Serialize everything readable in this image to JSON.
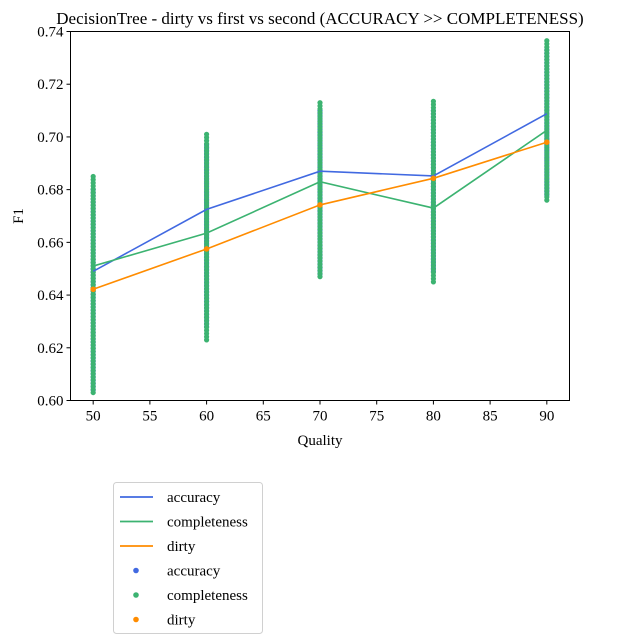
{
  "chart_data": {
    "type": "line",
    "title": "DecisionTree - dirty vs first vs second (ACCURACY >> COMPLETENESS)",
    "xlabel": "Quality",
    "ylabel": "F1",
    "xlim": [
      48,
      92
    ],
    "ylim": [
      0.6,
      0.74
    ],
    "xticks": [
      50,
      55,
      60,
      65,
      70,
      75,
      80,
      85,
      90
    ],
    "yticks": [
      0.6,
      0.62,
      0.64,
      0.66,
      0.68,
      0.7,
      0.72,
      0.74
    ],
    "ytick_labels": [
      "0.60",
      "0.62",
      "0.64",
      "0.66",
      "0.68",
      "0.70",
      "0.72",
      "0.74"
    ],
    "x": [
      50,
      60,
      70,
      80,
      90
    ],
    "series": [
      {
        "name": "accuracy",
        "kind": "line",
        "color": "#4169e1",
        "values": [
          0.649,
          0.6725,
          0.687,
          0.6852,
          0.7088
        ]
      },
      {
        "name": "completeness",
        "kind": "line",
        "color": "#3cb371",
        "values": [
          0.651,
          0.6635,
          0.683,
          0.673,
          0.7025
        ]
      },
      {
        "name": "dirty",
        "kind": "line",
        "color": "#ff8c00",
        "values": [
          0.6422,
          0.6575,
          0.6742,
          0.6843,
          0.698
        ]
      }
    ],
    "scatter": [
      {
        "name": "accuracy",
        "kind": "scatter",
        "color": "#4169e1",
        "ranges": [
          [
            50,
            0.604,
            0.68
          ],
          [
            60,
            0.628,
            0.697
          ],
          [
            70,
            0.648,
            0.71
          ],
          [
            80,
            0.649,
            0.71
          ],
          [
            90,
            0.678,
            0.733
          ]
        ]
      },
      {
        "name": "completeness",
        "kind": "scatter",
        "color": "#3cb371",
        "ranges": [
          [
            50,
            0.603,
            0.685
          ],
          [
            60,
            0.623,
            0.701
          ],
          [
            70,
            0.647,
            0.713
          ],
          [
            80,
            0.645,
            0.7135
          ],
          [
            90,
            0.676,
            0.7365
          ]
        ]
      },
      {
        "name": "dirty",
        "kind": "scatter",
        "color": "#ff8c00",
        "points": [
          [
            50,
            0.6422
          ],
          [
            60,
            0.6575
          ],
          [
            70,
            0.6742
          ],
          [
            80,
            0.6843
          ],
          [
            90,
            0.698
          ]
        ]
      }
    ],
    "legend": {
      "placement": "below-left",
      "entries": [
        {
          "label": "accuracy",
          "kind": "line",
          "color": "#4169e1"
        },
        {
          "label": "completeness",
          "kind": "line",
          "color": "#3cb371"
        },
        {
          "label": "dirty",
          "kind": "line",
          "color": "#ff8c00"
        },
        {
          "label": "accuracy",
          "kind": "dot",
          "color": "#4169e1"
        },
        {
          "label": "completeness",
          "kind": "dot",
          "color": "#3cb371"
        },
        {
          "label": "dirty",
          "kind": "dot",
          "color": "#ff8c00"
        }
      ]
    },
    "grid": false
  }
}
